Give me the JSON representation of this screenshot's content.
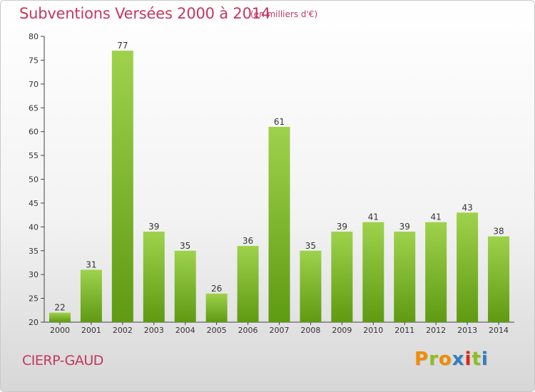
{
  "header": {
    "title": "Subventions Versées 2000 à 2014",
    "subtitle": "(en milliers d'€)"
  },
  "footer": {
    "town": "CIERP-GAUD",
    "brand": "Proxiti",
    "brand_colors": [
      "#f08c00",
      "#8cbf1f",
      "#f08c00",
      "#2f7fc1",
      "#e2231a",
      "#8cbf1f",
      "#2f7fc1"
    ]
  },
  "colors": {
    "title": "#c4375f",
    "bar_top": "#9fd24c",
    "bar_bottom": "#5e9a12",
    "axis": "#444444"
  },
  "chart_data": {
    "type": "bar",
    "categories": [
      "2000",
      "2001",
      "2002",
      "2003",
      "2004",
      "2005",
      "2006",
      "2007",
      "2008",
      "2009",
      "2010",
      "2011",
      "2012",
      "2013",
      "2014"
    ],
    "values": [
      22,
      31,
      77,
      39,
      35,
      26,
      36,
      61,
      35,
      39,
      41,
      39,
      41,
      43,
      38
    ],
    "ylim": [
      20,
      80
    ],
    "yticks": [
      20,
      25,
      30,
      35,
      40,
      45,
      50,
      55,
      60,
      65,
      70,
      75,
      80
    ],
    "grid": false,
    "legend": "none"
  }
}
